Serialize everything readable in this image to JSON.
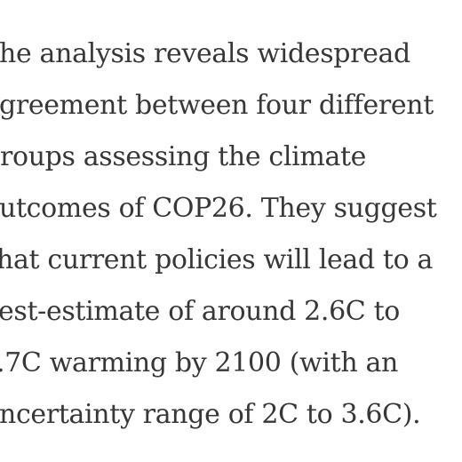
{
  "article": {
    "lines": [
      "he analysis reveals widespread",
      "greement between four different",
      "roups assessing the climate",
      "utcomes of COP26. They suggest",
      "hat current policies will lead to a",
      "est-estimate of around 2.6C to",
      ".7C warming by 2100 (with an",
      "ncertainty range of 2C to 3.6C)."
    ]
  }
}
